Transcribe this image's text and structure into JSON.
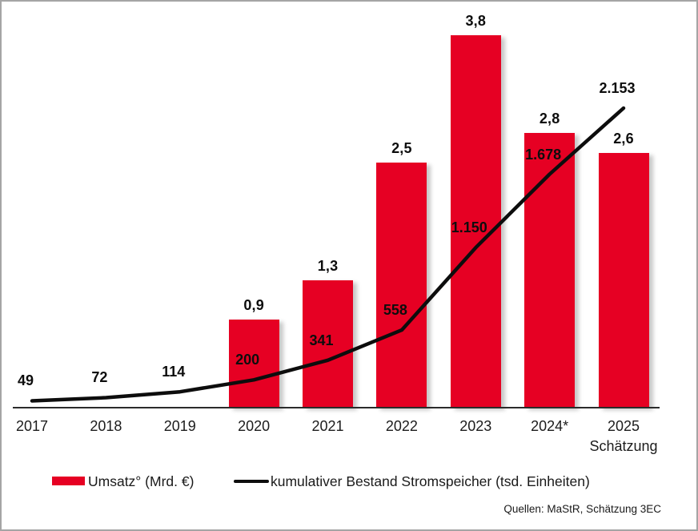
{
  "chart_data": {
    "type": "combo-bar-line",
    "categories": [
      "2017",
      "2018",
      "2019",
      "2020",
      "2021",
      "2022",
      "2023",
      "2024*",
      "2025"
    ],
    "last_category_sublabel": "Schätzung",
    "series": [
      {
        "name": "Umsatz° (Mrd. €)",
        "type": "bar",
        "color": "#e60023",
        "values": [
          null,
          null,
          null,
          0.9,
          1.3,
          2.5,
          3.8,
          2.8,
          2.6
        ],
        "labels": [
          "",
          "",
          "",
          "0,9",
          "1,3",
          "2,5",
          "3,8",
          "2,8",
          "2,6"
        ]
      },
      {
        "name": "kumulativer Bestand Stromspeicher (tsd. Einheiten)",
        "type": "line",
        "color": "#0d0d0d",
        "values": [
          49,
          72,
          114,
          200,
          341,
          558,
          1150,
          1678,
          2153
        ],
        "labels": [
          "49",
          "72",
          "114",
          "200",
          "341",
          "558",
          "1.150",
          "1.678",
          "2.153"
        ]
      }
    ],
    "ylim_bar": [
      0,
      4.2
    ],
    "ylim_line": [
      0,
      2950
    ],
    "grid": false,
    "legend_position": "bottom",
    "title": ""
  },
  "legend": {
    "items": [
      {
        "label": "Umsatz° (Mrd. €)",
        "swatch": "red-bar-swatch"
      },
      {
        "label": "kumulativer Bestand Stromspeicher (tsd. Einheiten)",
        "swatch": "black-line-swatch"
      }
    ]
  },
  "source": "Quellen: MaStR, Schätzung 3EC",
  "colors": {
    "bar_red": "#e60023",
    "line_black": "#0d0d0d",
    "axis": "#2b2b2b",
    "border": "#a5a5a5"
  }
}
